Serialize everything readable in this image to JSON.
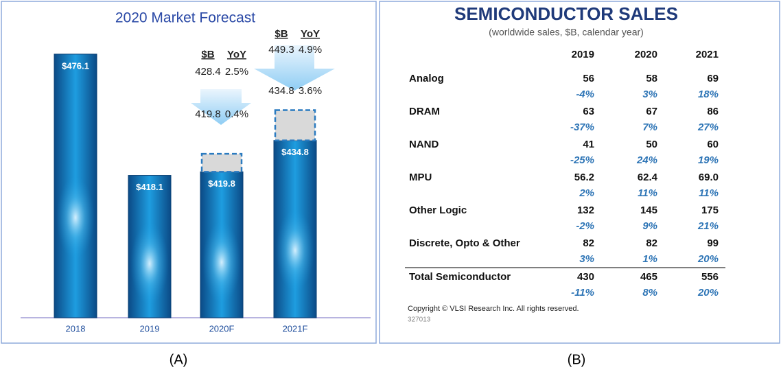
{
  "chart_data": {
    "type": "bar",
    "title": "2020 Market Forecast",
    "categories": [
      "2018",
      "2019",
      "2020F",
      "2021F"
    ],
    "values": [
      476.1,
      418.1,
      419.8,
      434.8
    ],
    "value_labels": [
      "$476.1",
      "$418.1",
      "$419.8",
      "$434.8"
    ],
    "color": "#1a7fc8",
    "ylim": [
      350,
      480
    ],
    "forecast_header": [
      "$B",
      "YoY"
    ],
    "high": [
      null,
      null,
      428.4,
      449.3
    ],
    "high_yoy": [
      null,
      null,
      "2.5%",
      "4.9%"
    ],
    "low": [
      null,
      null,
      419.8,
      434.8
    ],
    "low_yoy": [
      null,
      null,
      "0.4%",
      "3.6%"
    ]
  },
  "table": {
    "title": "SEMICONDUCTOR SALES",
    "subtitle": "(worldwide sales, $B, calendar year)",
    "columns": [
      "2019",
      "2020",
      "2021"
    ],
    "rows": [
      {
        "label": "Analog",
        "values": [
          "56",
          "58",
          "69"
        ],
        "growth": [
          "-4%",
          "3%",
          "18%"
        ]
      },
      {
        "label": "DRAM",
        "values": [
          "63",
          "67",
          "86"
        ],
        "growth": [
          "-37%",
          "7%",
          "27%"
        ]
      },
      {
        "label": "NAND",
        "values": [
          "41",
          "50",
          "60"
        ],
        "growth": [
          "-25%",
          "24%",
          "19%"
        ]
      },
      {
        "label": "MPU",
        "values": [
          "56.2",
          "62.4",
          "69.0"
        ],
        "growth": [
          "2%",
          "11%",
          "11%"
        ]
      },
      {
        "label": "Other Logic",
        "values": [
          "132",
          "145",
          "175"
        ],
        "growth": [
          "-2%",
          "9%",
          "21%"
        ]
      },
      {
        "label": "Discrete, Opto & Other",
        "values": [
          "82",
          "82",
          "99"
        ],
        "growth": [
          "3%",
          "1%",
          "20%"
        ]
      },
      {
        "label": "Total Semiconductor",
        "values": [
          "430",
          "465",
          "556"
        ],
        "growth": [
          "-11%",
          "8%",
          "20%"
        ]
      }
    ],
    "copyright": "Copyright © VLSI Research Inc.  All rights reserved.",
    "code": "327013"
  },
  "captions": [
    "(A)",
    "(B)"
  ]
}
